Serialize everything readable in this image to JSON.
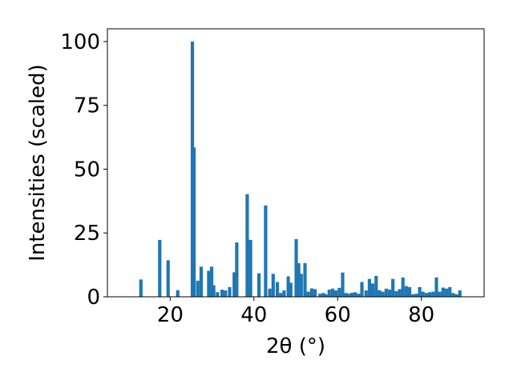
{
  "chart_data": {
    "type": "bar",
    "title": "",
    "xlabel": "2θ (°)",
    "ylabel": "Intensities (scaled)",
    "xlim": [
      5,
      95
    ],
    "ylim": [
      0,
      105
    ],
    "xticks": [
      20,
      40,
      60,
      80
    ],
    "yticks": [
      0,
      25,
      50,
      75,
      100
    ],
    "grid": false,
    "bar_color": "#1f77b4",
    "bar_width": 0.8,
    "x": [
      13,
      17.5,
      19.5,
      21.8,
      25.3,
      25.7,
      26.6,
      27.4,
      29.2,
      29.9,
      30.4,
      31.3,
      32.4,
      33.2,
      34.2,
      35.3,
      35.9,
      38.4,
      39.2,
      41.2,
      42.8,
      43.8,
      44.6,
      45.6,
      46.4,
      47.2,
      48.2,
      48.8,
      50.1,
      50.7,
      51.3,
      52.2,
      53.0,
      53.8,
      54.6,
      55.8,
      56.6,
      57.2,
      58.0,
      58.8,
      59.6,
      60.4,
      61.2,
      62.0,
      62.6,
      63.4,
      64.2,
      65.0,
      65.8,
      66.8,
      67.6,
      68.4,
      69.2,
      70.0,
      70.8,
      71.6,
      72.4,
      73.2,
      74.0,
      74.8,
      75.6,
      76.4,
      77.2,
      78.0,
      78.8,
      79.6,
      80.4,
      81.2,
      82.0,
      82.8,
      83.6,
      84.4,
      85.2,
      86.0,
      86.8,
      87.6,
      88.4,
      89.2
    ],
    "values": [
      6.8,
      22.3,
      14.3,
      2.6,
      100,
      58.5,
      6.3,
      11.8,
      10.2,
      11.8,
      4.5,
      1.8,
      2.8,
      2.5,
      3.8,
      9.6,
      21.3,
      40.2,
      22.3,
      9.2,
      35.8,
      3.2,
      9.0,
      5.8,
      1.5,
      2.5,
      8.0,
      5.5,
      22.6,
      13.2,
      9.0,
      13.2,
      2.0,
      3.3,
      3.0,
      1.2,
      1.5,
      1.0,
      2.8,
      3.2,
      2.5,
      3.5,
      9.5,
      1.5,
      1.2,
      1.6,
      1.8,
      1.2,
      5.8,
      2.5,
      7.0,
      5.2,
      8.2,
      2.6,
      2.0,
      3.2,
      2.8,
      7.0,
      2.2,
      3.0,
      7.6,
      4.2,
      3.8,
      1.0,
      1.2,
      3.8,
      2.0,
      1.5,
      1.8,
      2.0,
      7.6,
      2.0,
      3.6,
      3.2,
      3.8,
      1.5,
      1.0,
      2.5
    ]
  }
}
